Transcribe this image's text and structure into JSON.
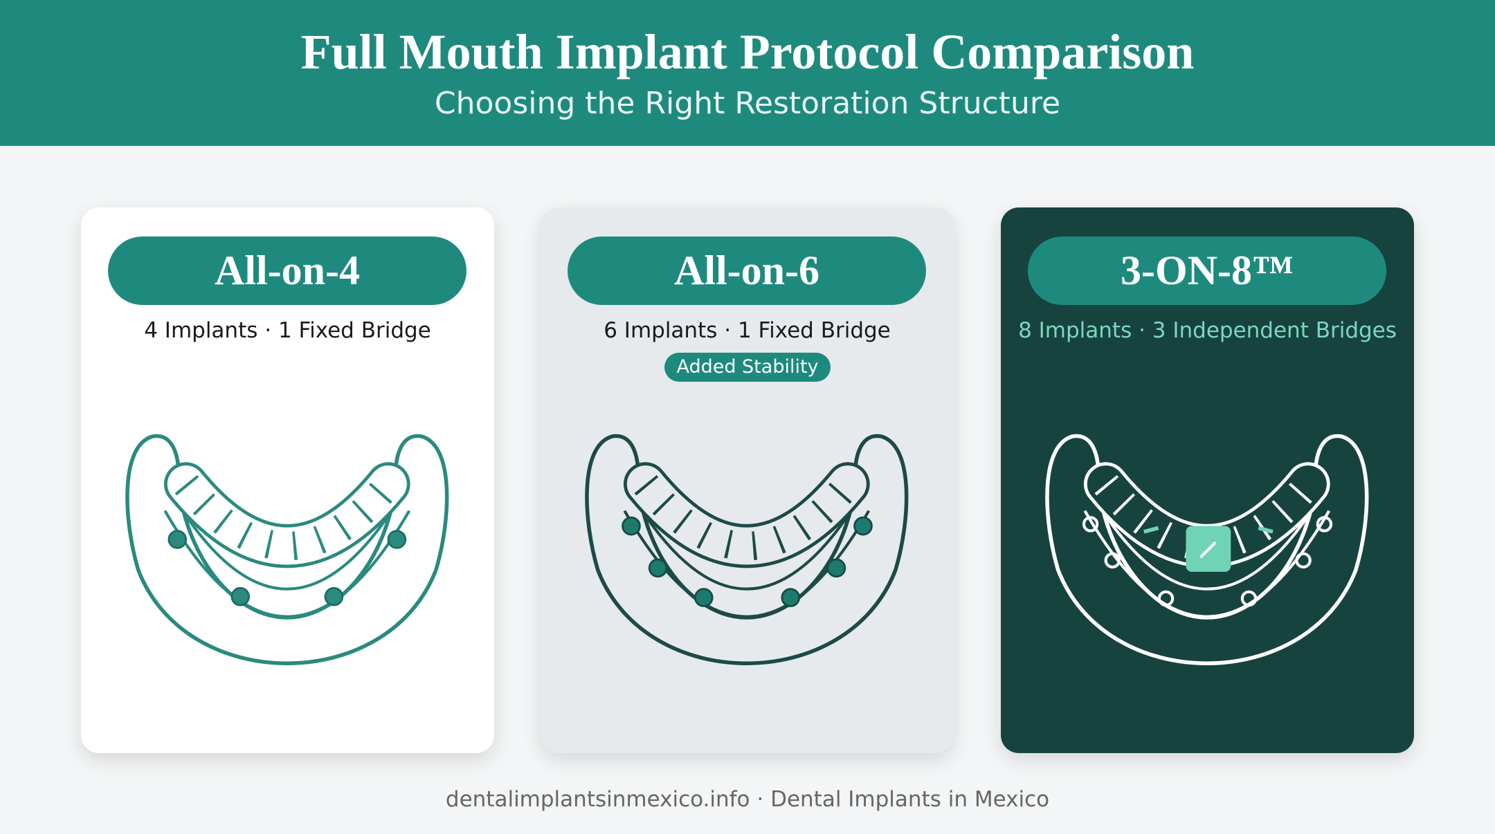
{
  "header": {
    "title": "Full Mouth Implant Protocol Comparison",
    "subtitle": "Choosing the Right Restoration Structure"
  },
  "cards": [
    {
      "title": "All-on-4",
      "subtitle": "4 Implants · 1 Fixed Bridge"
    },
    {
      "title": "All-on-6",
      "subtitle": "6 Implants · 1 Fixed Bridge",
      "badge": "Added Stability"
    },
    {
      "title": "3-ON-8™",
      "subtitle": "8 Implants · 3 Independent Bridges"
    }
  ],
  "footer": "dentalimplantsinmexico.info · Dental Implants in Mexico"
}
